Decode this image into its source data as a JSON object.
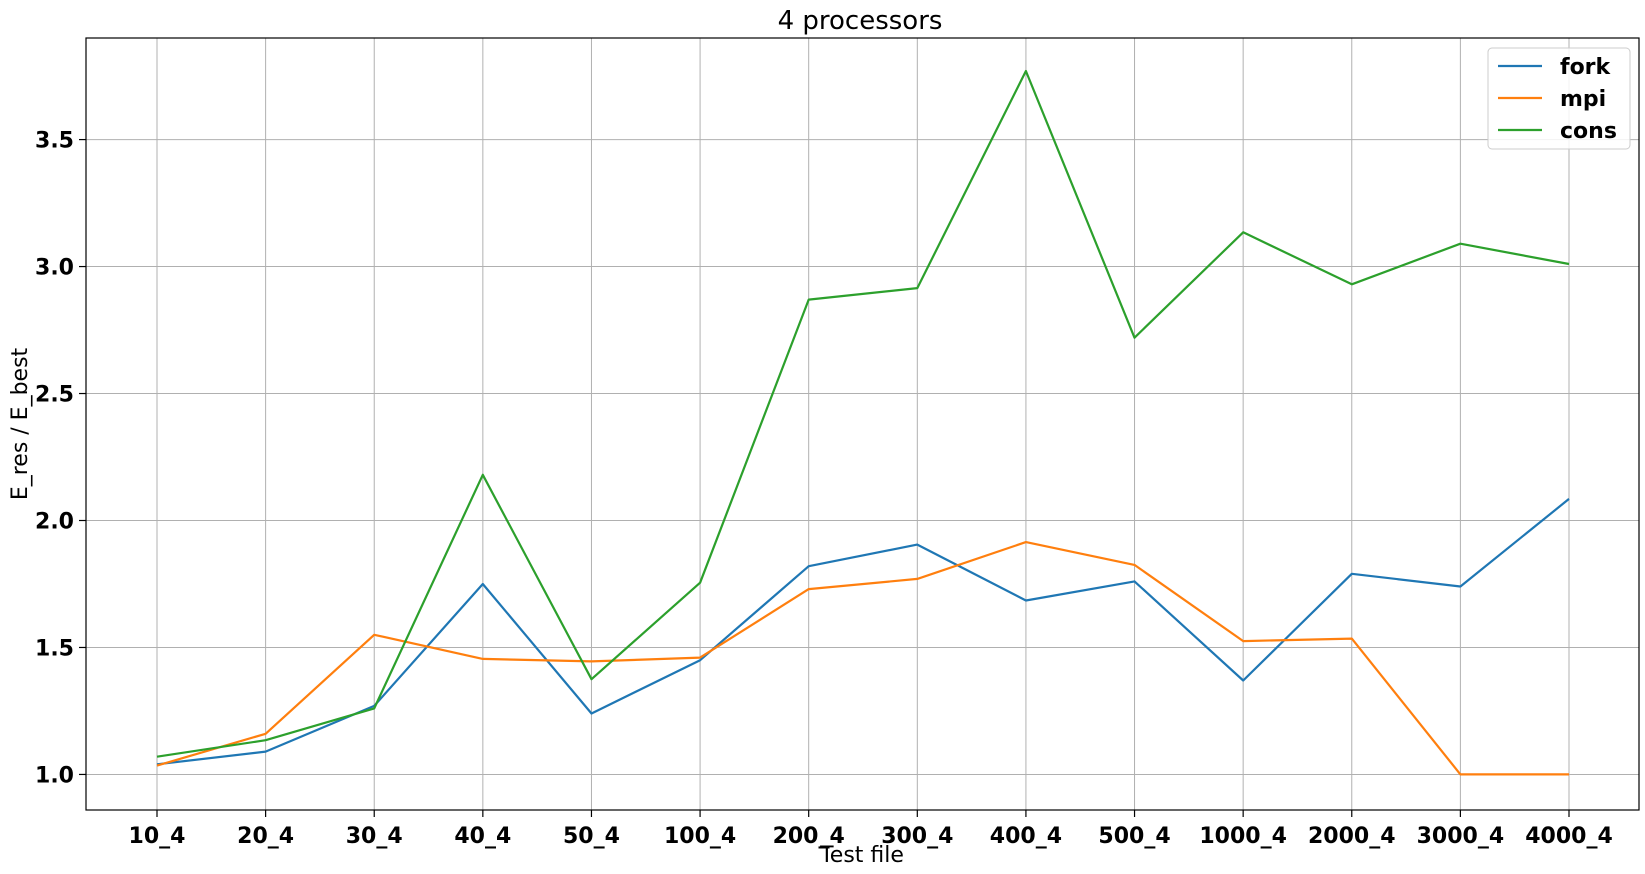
{
  "chart_data": {
    "type": "line",
    "title": "4 processors",
    "xlabel": "Test file",
    "ylabel": "E_res / E_best",
    "categories": [
      "10_4",
      "20_4",
      "30_4",
      "40_4",
      "50_4",
      "100_4",
      "200_4",
      "300_4",
      "400_4",
      "500_4",
      "1000_4",
      "2000_4",
      "3000_4",
      "4000_4"
    ],
    "ylim": [
      0.86,
      3.9
    ],
    "yticks": [
      "1.0",
      "1.5",
      "2.0",
      "2.5",
      "3.0",
      "3.5"
    ],
    "grid": true,
    "legend_position": "top-right",
    "series": [
      {
        "name": "fork",
        "color": "#1f77b4",
        "values": [
          1.04,
          1.09,
          1.27,
          1.75,
          1.24,
          1.45,
          1.82,
          1.905,
          1.685,
          1.76,
          1.37,
          1.79,
          1.74,
          2.085
        ]
      },
      {
        "name": "mpi",
        "color": "#ff7f0e",
        "values": [
          1.035,
          1.16,
          1.55,
          1.455,
          1.445,
          1.46,
          1.73,
          1.77,
          1.915,
          1.825,
          1.525,
          1.535,
          1.0,
          1.0
        ]
      },
      {
        "name": "cons",
        "color": "#2ca02c",
        "values": [
          1.07,
          1.135,
          1.26,
          2.18,
          1.375,
          1.755,
          2.87,
          2.915,
          3.77,
          2.72,
          3.135,
          2.93,
          3.09,
          3.01
        ]
      }
    ]
  }
}
